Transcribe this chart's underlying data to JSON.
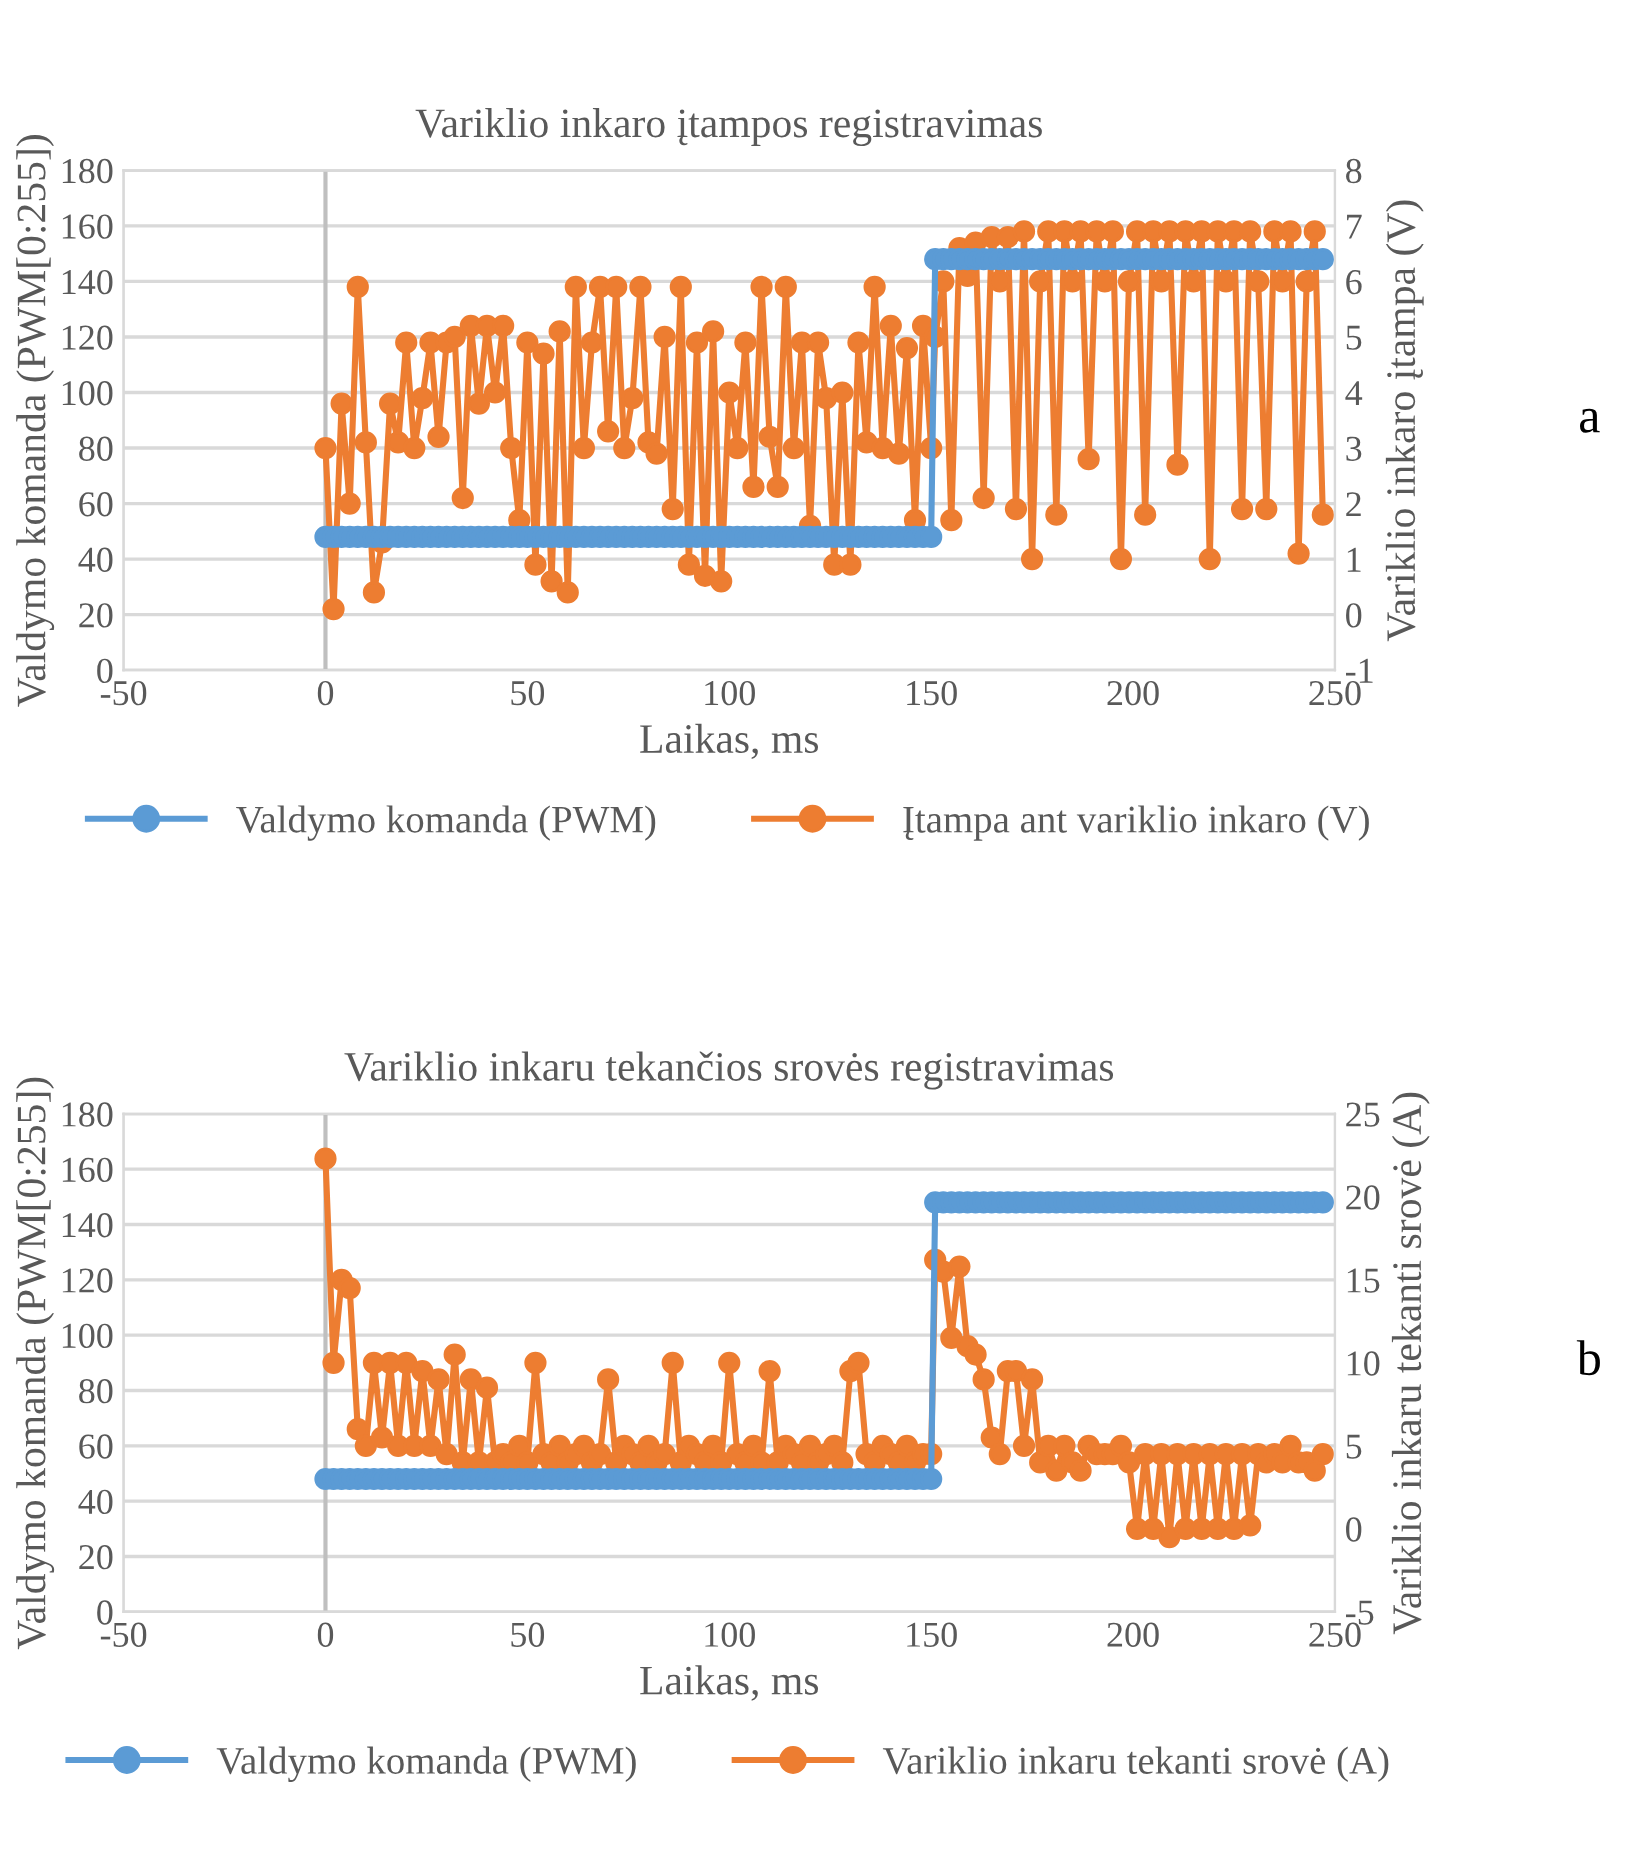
{
  "chart_data": [
    {
      "type": "line",
      "title": "Variklio inkaro įtampos registravimas",
      "xlabel": "Laikas, ms",
      "ylabel": "Valdymo komanda (PWM[0:255])",
      "y2label": "Variklio inkaro įtampa (V)",
      "x": [
        0,
        2,
        4,
        6,
        8,
        10,
        12,
        14,
        16,
        18,
        20,
        22,
        24,
        26,
        28,
        30,
        32,
        34,
        36,
        38,
        40,
        42,
        44,
        46,
        48,
        50,
        52,
        54,
        56,
        58,
        60,
        62,
        64,
        66,
        68,
        70,
        72,
        74,
        76,
        78,
        80,
        82,
        84,
        86,
        88,
        90,
        92,
        94,
        96,
        98,
        100,
        102,
        104,
        106,
        108,
        110,
        112,
        114,
        116,
        118,
        120,
        122,
        124,
        126,
        128,
        130,
        132,
        134,
        136,
        138,
        140,
        142,
        144,
        146,
        148,
        150,
        151,
        153,
        155,
        157,
        159,
        161,
        163,
        165,
        167,
        169,
        171,
        173,
        175,
        177,
        179,
        181,
        183,
        185,
        187,
        189,
        191,
        193,
        195,
        197,
        199,
        201,
        203,
        205,
        207,
        209,
        211,
        213,
        215,
        217,
        219,
        221,
        223,
        225,
        227,
        229,
        231,
        233,
        235,
        237,
        239,
        241,
        243,
        245,
        247
      ],
      "series": [
        {
          "name": "Valdymo komanda (PWM)",
          "color": "#5b9bd5",
          "values": [
            48,
            48,
            48,
            48,
            48,
            48,
            48,
            48,
            48,
            48,
            48,
            48,
            48,
            48,
            48,
            48,
            48,
            48,
            48,
            48,
            48,
            48,
            48,
            48,
            48,
            48,
            48,
            48,
            48,
            48,
            48,
            48,
            48,
            48,
            48,
            48,
            48,
            48,
            48,
            48,
            48,
            48,
            48,
            48,
            48,
            48,
            48,
            48,
            48,
            48,
            48,
            48,
            48,
            48,
            48,
            48,
            48,
            48,
            48,
            48,
            48,
            48,
            48,
            48,
            48,
            48,
            48,
            48,
            48,
            48,
            48,
            48,
            48,
            48,
            48,
            48,
            148,
            148,
            148,
            148,
            148,
            148,
            148,
            148,
            148,
            148,
            148,
            148,
            148,
            148,
            148,
            148,
            148,
            148,
            148,
            148,
            148,
            148,
            148,
            148,
            148,
            148,
            148,
            148,
            148,
            148,
            148,
            148,
            148,
            148,
            148,
            148,
            148,
            148,
            148,
            148,
            148,
            148,
            148,
            148,
            148,
            148,
            148,
            148,
            148
          ]
        },
        {
          "name": "Įtampa ant variklio inkaro (V)",
          "color": "#ed7d31",
          "axis": "y2",
          "values": [
            3.0,
            0.1,
            3.8,
            2.0,
            5.9,
            3.1,
            0.4,
            1.3,
            3.8,
            3.1,
            4.9,
            3.0,
            3.9,
            4.9,
            3.2,
            4.9,
            5.0,
            2.1,
            5.2,
            3.8,
            5.2,
            4.0,
            5.2,
            3.0,
            1.7,
            4.9,
            0.9,
            4.7,
            0.6,
            5.1,
            0.4,
            5.9,
            3.0,
            4.9,
            5.9,
            3.3,
            5.9,
            3.0,
            3.9,
            5.9,
            3.1,
            2.9,
            5.0,
            1.9,
            5.9,
            0.9,
            4.9,
            0.7,
            5.1,
            0.6,
            4.0,
            3.0,
            4.9,
            2.3,
            5.9,
            3.2,
            2.3,
            5.9,
            3.0,
            4.9,
            1.6,
            4.9,
            3.9,
            0.9,
            4.0,
            0.9,
            4.9,
            3.1,
            5.9,
            3.0,
            5.2,
            2.9,
            4.8,
            1.7,
            5.2,
            3.0,
            5.0,
            6.0,
            1.7,
            6.6,
            6.1,
            6.7,
            2.1,
            6.8,
            6.0,
            6.8,
            1.9,
            6.9,
            1.0,
            6.0,
            6.9,
            1.8,
            6.9,
            6.0,
            6.9,
            2.8,
            6.9,
            6.0,
            6.9,
            1.0,
            6.0,
            6.9,
            1.8,
            6.9,
            6.0,
            6.9,
            2.7,
            6.9,
            6.0,
            6.9,
            1.0,
            6.9,
            6.0,
            6.9,
            1.9,
            6.9,
            6.0,
            1.9,
            6.9,
            6.0,
            6.9,
            1.1,
            6.0,
            6.9,
            1.8
          ]
        }
      ],
      "xlim": [
        -50,
        250
      ],
      "xticks": [
        -50,
        0,
        50,
        100,
        150,
        200,
        250
      ],
      "ylim": [
        0,
        180
      ],
      "yticks": [
        0,
        20,
        40,
        60,
        80,
        100,
        120,
        140,
        160,
        180
      ],
      "y2lim": [
        -1,
        8
      ],
      "y2ticks": [
        -1,
        0,
        1,
        2,
        3,
        4,
        5,
        6,
        7,
        8
      ],
      "marker": "circle",
      "line_style": "solid",
      "grid": true,
      "legend": "bottom",
      "annotations": [
        "a"
      ]
    },
    {
      "type": "line",
      "title": "Variklio inkaru tekančios srovės registravimas",
      "xlabel": "Laikas, ms",
      "ylabel": "Valdymo komanda (PWM[0:255])",
      "y2label": "Variklio inkaru tekanti srovė (A)",
      "x": [
        0,
        2,
        4,
        6,
        8,
        10,
        12,
        14,
        16,
        18,
        20,
        22,
        24,
        26,
        28,
        30,
        32,
        34,
        36,
        38,
        40,
        42,
        44,
        46,
        48,
        50,
        52,
        54,
        56,
        58,
        60,
        62,
        64,
        66,
        68,
        70,
        72,
        74,
        76,
        78,
        80,
        82,
        84,
        86,
        88,
        90,
        92,
        94,
        96,
        98,
        100,
        102,
        104,
        106,
        108,
        110,
        112,
        114,
        116,
        118,
        120,
        122,
        124,
        126,
        128,
        130,
        132,
        134,
        136,
        138,
        140,
        142,
        144,
        146,
        148,
        150,
        151,
        153,
        155,
        157,
        159,
        161,
        163,
        165,
        167,
        169,
        171,
        173,
        175,
        177,
        179,
        181,
        183,
        185,
        187,
        189,
        191,
        193,
        195,
        197,
        199,
        201,
        203,
        205,
        207,
        209,
        211,
        213,
        215,
        217,
        219,
        221,
        223,
        225,
        227,
        229,
        231,
        233,
        235,
        237,
        239,
        241,
        243,
        245,
        247
      ],
      "series": [
        {
          "name": "Valdymo komanda (PWM)",
          "color": "#5b9bd5",
          "values": [
            48,
            48,
            48,
            48,
            48,
            48,
            48,
            48,
            48,
            48,
            48,
            48,
            48,
            48,
            48,
            48,
            48,
            48,
            48,
            48,
            48,
            48,
            48,
            48,
            48,
            48,
            48,
            48,
            48,
            48,
            48,
            48,
            48,
            48,
            48,
            48,
            48,
            48,
            48,
            48,
            48,
            48,
            48,
            48,
            48,
            48,
            48,
            48,
            48,
            48,
            48,
            48,
            48,
            48,
            48,
            48,
            48,
            48,
            48,
            48,
            48,
            48,
            48,
            48,
            48,
            48,
            48,
            48,
            48,
            48,
            48,
            48,
            48,
            48,
            48,
            48,
            148,
            148,
            148,
            148,
            148,
            148,
            148,
            148,
            148,
            148,
            148,
            148,
            148,
            148,
            148,
            148,
            148,
            148,
            148,
            148,
            148,
            148,
            148,
            148,
            148,
            148,
            148,
            148,
            148,
            148,
            148,
            148,
            148,
            148,
            148,
            148,
            148,
            148,
            148,
            148,
            148,
            148,
            148,
            148,
            148,
            148,
            148,
            148,
            148
          ]
        },
        {
          "name": "Variklio inkaru tekanti srovė (A)",
          "color": "#ed7d31",
          "axis": "y2",
          "values": [
            22.3,
            10,
            15,
            14.5,
            6,
            5,
            10,
            5.5,
            10,
            5,
            10,
            5,
            9.5,
            5,
            9,
            4.5,
            10.5,
            4,
            9,
            4,
            8.5,
            4,
            4.5,
            4,
            5,
            4,
            10,
            4.5,
            4,
            5,
            4,
            4.5,
            5,
            4,
            4.5,
            9,
            4,
            5,
            4.5,
            4,
            5,
            4,
            4.5,
            10,
            4,
            5,
            4.5,
            4,
            5,
            4,
            10,
            4.5,
            4,
            5,
            4,
            9.5,
            4,
            5,
            4.5,
            4,
            5,
            4,
            4.5,
            5,
            4,
            9.5,
            10,
            4.5,
            4,
            5,
            4.5,
            4,
            5,
            4,
            4.5,
            4.5,
            16.2,
            15.5,
            11.5,
            15.8,
            11,
            10.5,
            9,
            5.5,
            4.5,
            9.5,
            9.5,
            5,
            9,
            4,
            5,
            3.5,
            5,
            4,
            3.5,
            5,
            4.5,
            4.5,
            4.5,
            5,
            4,
            0,
            4.5,
            0,
            4.5,
            -0.5,
            4.5,
            0,
            4.5,
            0,
            4.5,
            0,
            4.5,
            0,
            4.5,
            0.2,
            4.5,
            4,
            4.5,
            4,
            5,
            4,
            4,
            3.5,
            4.5
          ]
        }
      ],
      "xlim": [
        -50,
        250
      ],
      "xticks": [
        -50,
        0,
        50,
        100,
        150,
        200,
        250
      ],
      "ylim": [
        0,
        180
      ],
      "yticks": [
        0,
        20,
        40,
        60,
        80,
        100,
        120,
        140,
        160,
        180
      ],
      "y2lim": [
        -5,
        25
      ],
      "y2ticks": [
        -5,
        0,
        5,
        10,
        15,
        20,
        25
      ],
      "marker": "circle",
      "line_style": "solid",
      "grid": true,
      "legend": "bottom",
      "annotations": [
        "b"
      ]
    }
  ]
}
